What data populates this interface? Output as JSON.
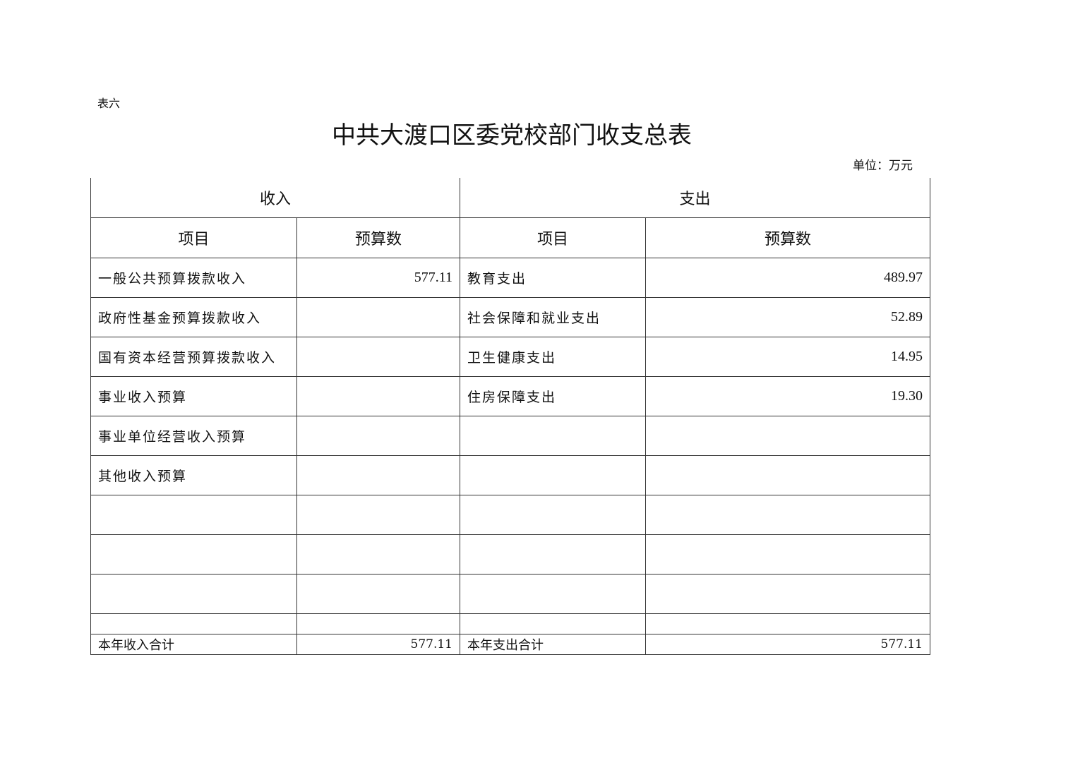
{
  "header": {
    "table_label": "表六",
    "title": "中共大渡口区委党校部门收支总表",
    "unit": "单位：万元"
  },
  "table": {
    "income_header": "收入",
    "expense_header": "支出",
    "col_item": "项目",
    "col_budget": "预算数",
    "rows": [
      {
        "income_item": "一般公共预算拨款收入",
        "income_value": "577.11",
        "expense_item": "教育支出",
        "expense_value": "489.97"
      },
      {
        "income_item": "政府性基金预算拨款收入",
        "income_value": "",
        "expense_item": "社会保障和就业支出",
        "expense_value": "52.89"
      },
      {
        "income_item": "国有资本经营预算拨款收入",
        "income_value": "",
        "expense_item": "卫生健康支出",
        "expense_value": "14.95"
      },
      {
        "income_item": "事业收入预算",
        "income_value": "",
        "expense_item": "住房保障支出",
        "expense_value": "19.30"
      },
      {
        "income_item": "事业单位经营收入预算",
        "income_value": "",
        "expense_item": "",
        "expense_value": ""
      },
      {
        "income_item": "其他收入预算",
        "income_value": "",
        "expense_item": "",
        "expense_value": ""
      }
    ],
    "total": {
      "income_label": "本年收入合计",
      "income_value": "577.11",
      "expense_label": "本年支出合计",
      "expense_value": "577.11"
    }
  }
}
